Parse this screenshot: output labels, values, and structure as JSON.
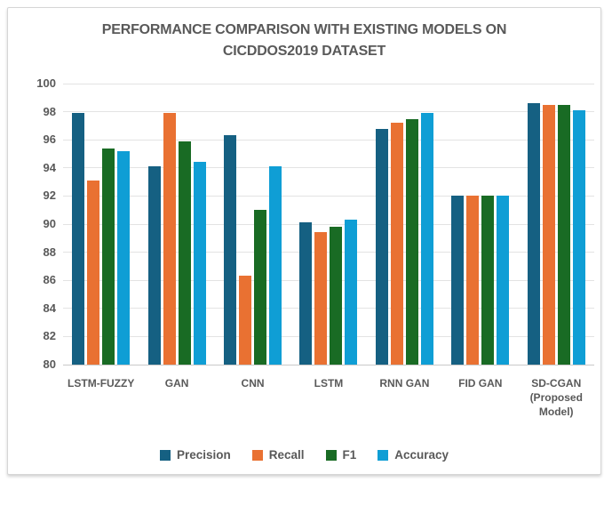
{
  "chart_data": {
    "type": "bar",
    "title": "PERFORMANCE COMPARISON WITH EXISTING MODELS ON CICDDOS2019 DATASET",
    "categories": [
      "LSTM-FUZZY",
      "GAN",
      "CNN",
      "LSTM",
      "RNN GAN",
      "FID GAN",
      "SD-CGAN (Proposed Model)"
    ],
    "series": [
      {
        "name": "Precision",
        "color": "#156082",
        "values": [
          97.9,
          94.1,
          96.3,
          90.1,
          96.8,
          92.0,
          98.6
        ]
      },
      {
        "name": "Recall",
        "color": "#E97132",
        "values": [
          93.1,
          97.9,
          86.3,
          89.4,
          97.2,
          92.0,
          98.5
        ]
      },
      {
        "name": "F1",
        "color": "#196B24",
        "values": [
          95.4,
          95.9,
          91.0,
          89.8,
          97.5,
          92.0,
          98.5
        ]
      },
      {
        "name": "Accuracy",
        "color": "#0F9ED5",
        "values": [
          95.2,
          94.4,
          94.1,
          90.3,
          97.9,
          92.0,
          98.1
        ]
      }
    ],
    "ylim": [
      80,
      100
    ],
    "ytick_step": 2,
    "grid": true,
    "legend_position": "bottom",
    "text_color": "#595959",
    "gridline_color": "#e3e3e3"
  }
}
